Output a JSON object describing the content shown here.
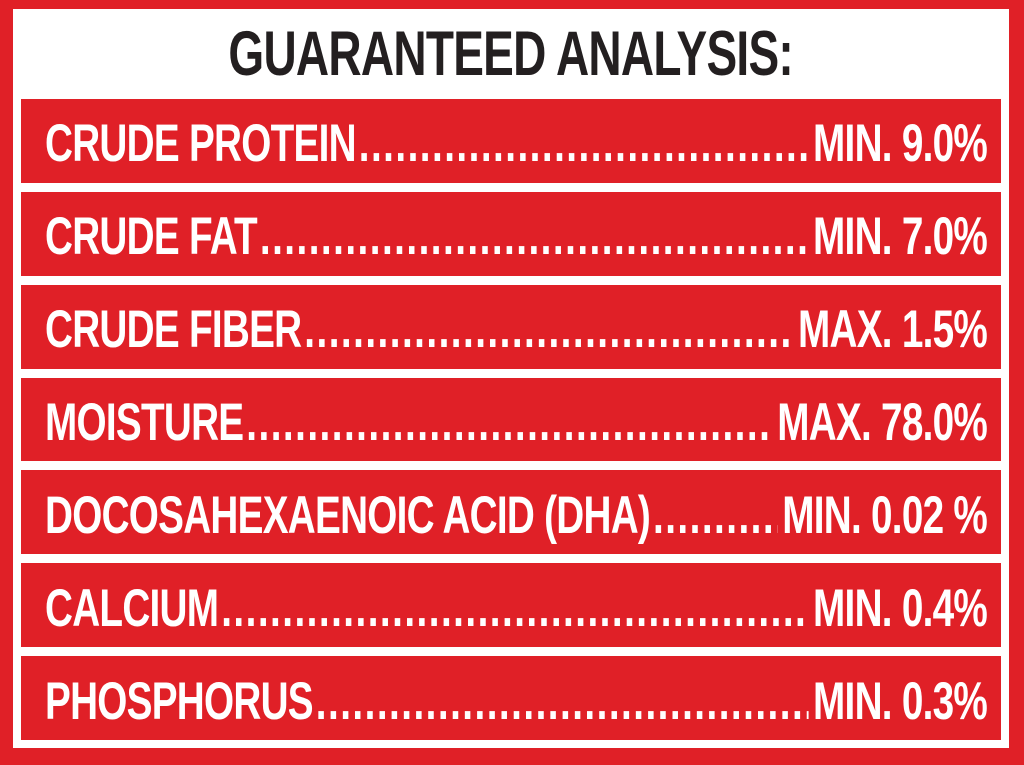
{
  "label_panel": {
    "title": "GUARANTEED ANALYSIS:",
    "rows": [
      {
        "label": "CRUDE PROTEIN",
        "qualifier": "MIN.",
        "amount": "9.0%",
        "value": "MIN. 9.0%"
      },
      {
        "label": "CRUDE FAT",
        "qualifier": "MIN.",
        "amount": "7.0%",
        "value": "MIN. 7.0%"
      },
      {
        "label": "CRUDE FIBER",
        "qualifier": "MAX.",
        "amount": "1.5%",
        "value": "MAX. 1.5%"
      },
      {
        "label": "MOISTURE",
        "qualifier": "MAX.",
        "amount": "78.0%",
        "value": "MAX. 78.0%"
      },
      {
        "label": "DOCOSAHEXAENOIC ACID (DHA)",
        "qualifier": "MIN.",
        "amount": "0.02 %",
        "value": "MIN. 0.02 %"
      },
      {
        "label": "CALCIUM",
        "qualifier": "MIN.",
        "amount": "0.4%",
        "value": "MIN. 0.4%"
      },
      {
        "label": "PHOSPHORUS",
        "qualifier": "MIN.",
        "amount": "0.3%",
        "value": "MIN. 0.3%"
      }
    ]
  },
  "colors": {
    "brand_red": "#E02027",
    "text_black": "#231F20",
    "text_white": "#FFFFFF"
  }
}
